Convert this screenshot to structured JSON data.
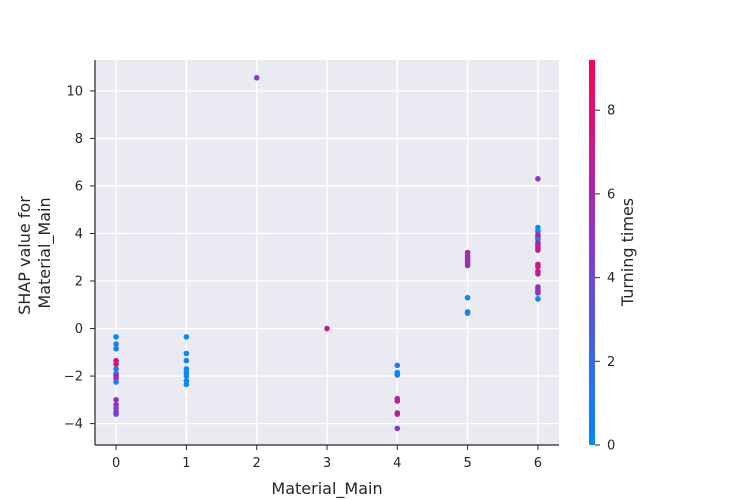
{
  "chart_data": {
    "type": "scatter",
    "title": "",
    "xlabel": "Material_Main",
    "ylabel_lines": [
      "SHAP value for",
      "Material_Main"
    ],
    "xlim": [
      -0.3,
      6.3
    ],
    "ylim": [
      -4.9,
      11.3
    ],
    "xticks": [
      0,
      1,
      2,
      3,
      4,
      5,
      6
    ],
    "yticks": [
      -4,
      -2,
      0,
      2,
      4,
      6,
      8,
      10
    ],
    "grid": true,
    "background": "#eaeaf2",
    "colorbar": {
      "label": "Turning times",
      "min": 0,
      "max": 9.2,
      "ticks": [
        0,
        2,
        4,
        6,
        8
      ],
      "colors": [
        "#008afb",
        "#7f3cd1",
        "#ff0052"
      ]
    },
    "points": [
      {
        "x": 0,
        "y": -0.35,
        "c": 0
      },
      {
        "x": 0,
        "y": -0.65,
        "c": 0.5
      },
      {
        "x": 0,
        "y": -0.85,
        "c": 0.5
      },
      {
        "x": 0,
        "y": -1.35,
        "c": 8
      },
      {
        "x": 0,
        "y": -1.5,
        "c": 8
      },
      {
        "x": 0,
        "y": -1.7,
        "c": 1
      },
      {
        "x": 0,
        "y": -1.9,
        "c": 1
      },
      {
        "x": 0,
        "y": -2.0,
        "c": 7
      },
      {
        "x": 0,
        "y": -2.1,
        "c": 6
      },
      {
        "x": 0,
        "y": -2.25,
        "c": 0.5
      },
      {
        "x": 0,
        "y": -3.0,
        "c": 5
      },
      {
        "x": 0,
        "y": -3.2,
        "c": 6
      },
      {
        "x": 0,
        "y": -3.35,
        "c": 4
      },
      {
        "x": 0,
        "y": -3.5,
        "c": 5
      },
      {
        "x": 0,
        "y": -3.6,
        "c": 4.5
      },
      {
        "x": 1,
        "y": -0.35,
        "c": 0
      },
      {
        "x": 1,
        "y": -1.05,
        "c": 0
      },
      {
        "x": 1,
        "y": -1.35,
        "c": 0.5
      },
      {
        "x": 1,
        "y": -1.7,
        "c": 0
      },
      {
        "x": 1,
        "y": -1.85,
        "c": 0.5
      },
      {
        "x": 1,
        "y": -2.0,
        "c": 0
      },
      {
        "x": 1,
        "y": -2.2,
        "c": 0.5
      },
      {
        "x": 1,
        "y": -2.35,
        "c": 0
      },
      {
        "x": 2,
        "y": 10.55,
        "c": 5
      },
      {
        "x": 3,
        "y": 0.0,
        "c": 7
      },
      {
        "x": 4,
        "y": -1.55,
        "c": 0.5
      },
      {
        "x": 4,
        "y": -1.85,
        "c": 0
      },
      {
        "x": 4,
        "y": -1.95,
        "c": 0.5
      },
      {
        "x": 4,
        "y": -2.95,
        "c": 6
      },
      {
        "x": 4,
        "y": -3.05,
        "c": 7
      },
      {
        "x": 4,
        "y": -3.55,
        "c": 6
      },
      {
        "x": 4,
        "y": -3.6,
        "c": 7
      },
      {
        "x": 4,
        "y": -4.2,
        "c": 5
      },
      {
        "x": 5,
        "y": 3.2,
        "c": 6
      },
      {
        "x": 5,
        "y": 3.05,
        "c": 5.5
      },
      {
        "x": 5,
        "y": 2.95,
        "c": 6
      },
      {
        "x": 5,
        "y": 2.85,
        "c": 5
      },
      {
        "x": 5,
        "y": 2.75,
        "c": 6
      },
      {
        "x": 5,
        "y": 2.65,
        "c": 5.5
      },
      {
        "x": 5,
        "y": 1.3,
        "c": 0
      },
      {
        "x": 5,
        "y": 0.7,
        "c": 0
      },
      {
        "x": 5,
        "y": 0.65,
        "c": 0.5
      },
      {
        "x": 6,
        "y": 6.3,
        "c": 5
      },
      {
        "x": 6,
        "y": 4.25,
        "c": 0
      },
      {
        "x": 6,
        "y": 4.1,
        "c": 0.5
      },
      {
        "x": 6,
        "y": 3.95,
        "c": 4
      },
      {
        "x": 6,
        "y": 3.85,
        "c": 8
      },
      {
        "x": 6,
        "y": 3.75,
        "c": 0
      },
      {
        "x": 6,
        "y": 3.6,
        "c": 6
      },
      {
        "x": 6,
        "y": 3.5,
        "c": 7
      },
      {
        "x": 6,
        "y": 3.4,
        "c": 6
      },
      {
        "x": 6,
        "y": 3.3,
        "c": 7
      },
      {
        "x": 6,
        "y": 2.7,
        "c": 8
      },
      {
        "x": 6,
        "y": 2.6,
        "c": 7
      },
      {
        "x": 6,
        "y": 2.4,
        "c": 8
      },
      {
        "x": 6,
        "y": 2.3,
        "c": 7
      },
      {
        "x": 6,
        "y": 1.75,
        "c": 6
      },
      {
        "x": 6,
        "y": 1.65,
        "c": 5
      },
      {
        "x": 6,
        "y": 1.55,
        "c": 6
      },
      {
        "x": 6,
        "y": 1.5,
        "c": 5
      },
      {
        "x": 6,
        "y": 1.25,
        "c": 0
      }
    ]
  }
}
